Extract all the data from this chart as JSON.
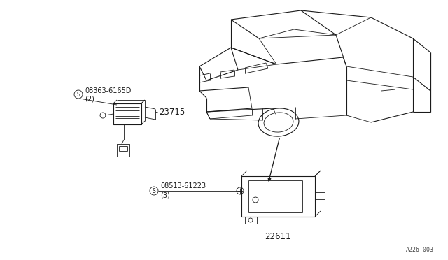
{
  "bg_color": "#ffffff",
  "line_color": "#1a1a1a",
  "diagram_ref": "A226│003-",
  "part_23715_label": "23715",
  "part_22611_label": "22611",
  "screw_top_label": "08363-6165D",
  "screw_top_qty": "(2)",
  "screw_bot_label": "08513-61223",
  "screw_bot_qty": "(3)"
}
